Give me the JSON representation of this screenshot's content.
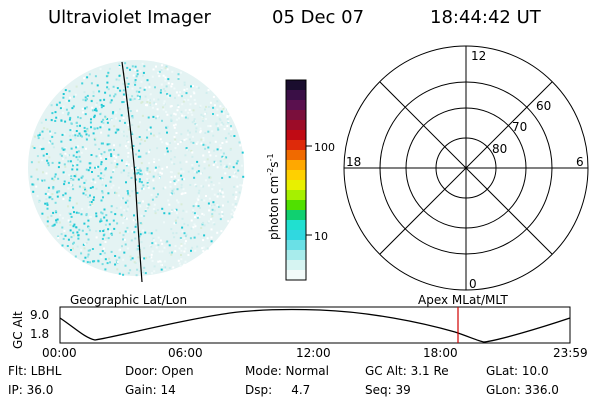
{
  "header": {
    "instrument": "Ultraviolet Imager",
    "date": "05 Dec 07",
    "time": "18:44:42 UT"
  },
  "colorbar": {
    "unit_main": "photon cm",
    "unit_exp1": "-2",
    "unit_s": "s",
    "unit_exp2": "-1",
    "ticks": [
      "100",
      "10"
    ],
    "colors": [
      "#1a0d2e",
      "#3a0f46",
      "#5a104e",
      "#7a0f3c",
      "#9c0c28",
      "#c00a14",
      "#de2a0a",
      "#f06a00",
      "#ffa800",
      "#ffd000",
      "#e8f000",
      "#a6f000",
      "#50e000",
      "#10d070",
      "#20e0d0",
      "#30d8e0",
      "#6ae0e6",
      "#a8ecec",
      "#d6f4f2",
      "#f2fbfa"
    ]
  },
  "polar_plot": {
    "mlt_labels": {
      "top": "12",
      "bottom": "0",
      "left": "18",
      "right": "6"
    },
    "lat_labels": [
      "60",
      "70",
      "80"
    ]
  },
  "timeline": {
    "title_left": "Geographic Lat/Lon",
    "title_right": "Apex MLat/MLT",
    "axis_label": "GC Alt",
    "y_ticks": [
      "9.0",
      "1.8"
    ],
    "x_ticks": [
      "00:00",
      "06:00",
      "12:00",
      "18:00",
      "23:59"
    ],
    "marker_color": "#d00000"
  },
  "info": {
    "flt": "Flt: LBHL",
    "door": "Door: Open",
    "mode": "Mode: Normal",
    "gc_alt": "GC Alt: 3.1 Re",
    "glat": "GLat:  10.0",
    "ip": "IP: 36.0",
    "gain": "Gain: 14",
    "dsp": "Dsp:     4.7",
    "seq": "Seq: 39",
    "glon": "GLon: 336.0"
  }
}
